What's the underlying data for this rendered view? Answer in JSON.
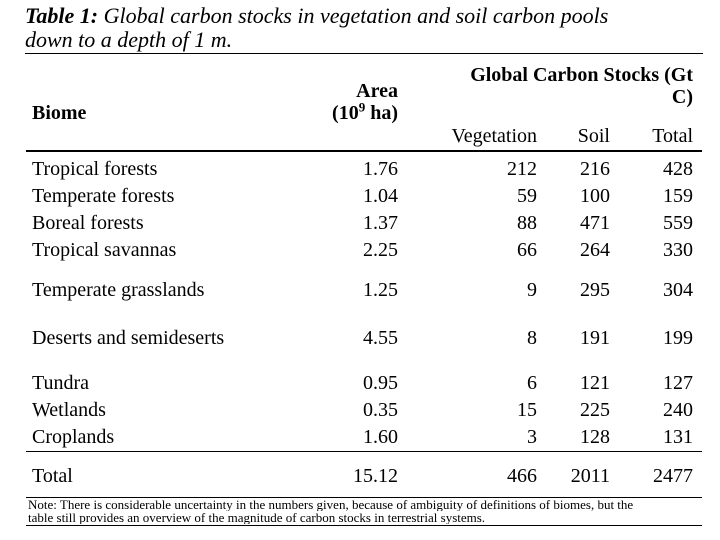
{
  "caption": {
    "label": "Table 1:",
    "line1_rest": " Global carbon stocks in vegetation and soil carbon pools",
    "line2": "down to a depth of 1 m."
  },
  "table": {
    "header": {
      "biome": "Biome",
      "area_line1": "Area",
      "area_base": "(10",
      "area_sup": "9",
      "area_unit": " ha)",
      "stocks_line1": "Global Carbon Stocks (Gt",
      "stocks_line2": "C)",
      "vegetation": "Vegetation",
      "soil": "Soil",
      "total": "Total"
    },
    "rows": [
      {
        "biome": "Tropical forests",
        "area": "1.76",
        "vegetation": "212",
        "soil": "216",
        "total": "428"
      },
      {
        "biome": "Temperate forests",
        "area": "1.04",
        "vegetation": "59",
        "soil": "100",
        "total": "159"
      },
      {
        "biome": "Boreal forests",
        "area": "1.37",
        "vegetation": "88",
        "soil": "471",
        "total": "559"
      },
      {
        "biome": "Tropical savannas",
        "area": "2.25",
        "vegetation": "66",
        "soil": "264",
        "total": "330"
      },
      {
        "biome": "Temperate grasslands",
        "area": "1.25",
        "vegetation": "9",
        "soil": "295",
        "total": "304"
      },
      {
        "biome": "Deserts and semideserts",
        "area": "4.55",
        "vegetation": "8",
        "soil": "191",
        "total": "199"
      },
      {
        "biome": "Tundra",
        "area": "0.95",
        "vegetation": "6",
        "soil": "121",
        "total": "127"
      },
      {
        "biome": "Wetlands",
        "area": "0.35",
        "vegetation": "15",
        "soil": "225",
        "total": "240"
      },
      {
        "biome": "Croplands",
        "area": "1.60",
        "vegetation": "3",
        "soil": "128",
        "total": "131"
      }
    ],
    "total_row": {
      "label": "Total",
      "area": "15.12",
      "vegetation": "466",
      "soil": "2011",
      "total": "2477"
    }
  },
  "note": {
    "line1": "Note: There is considerable uncertainty in the numbers given, because of ambiguity of definitions of biomes, but the",
    "line2": "table still provides an overview of the magnitude of carbon stocks in terrestrial systems."
  },
  "colors": {
    "text": "#000000",
    "background": "#ffffff",
    "rule": "#000000"
  }
}
